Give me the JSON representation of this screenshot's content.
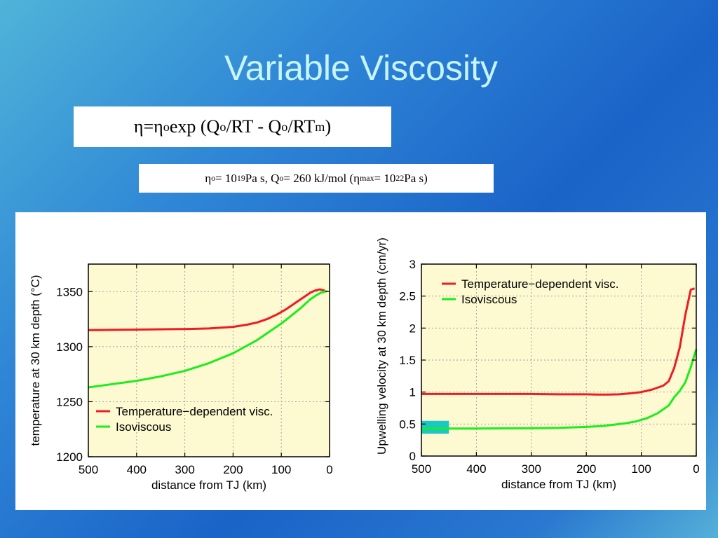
{
  "slide": {
    "title": "Variable Viscosity",
    "equation": {
      "eta": "η",
      "eq": " = ",
      "eta2": "η",
      "sub_o1": "o",
      "exp": " exp  (Q",
      "sub_o2": "o",
      "mid": "/RT - Q",
      "sub_o3": "o",
      "rt": "/RT",
      "sub_m": "m",
      "close": ")"
    },
    "params": {
      "eta": "η",
      "sub_o1": "o",
      "eq1": " = 10",
      "sup19": "19",
      "pas1": " Pa s, Q",
      "sub_o2": "o",
      "q": " = 260 kJ/mol  (η",
      "sub_max": "max",
      "eq2": " = 10",
      "sup22": "22",
      "pas2": " Pa s)"
    }
  },
  "colors": {
    "red": "#ee1c24",
    "green": "#1ced1c",
    "plot_bg": "#fdf9d0",
    "cyan": "#19c6c8"
  },
  "chart_data": [
    {
      "type": "line",
      "title": "",
      "xlabel": "distance from TJ (km)",
      "ylabel": "temperature at 30 km depth (°C)",
      "xlim": [
        500,
        0
      ],
      "ylim": [
        1200,
        1375
      ],
      "x_ticks": [
        "500",
        "400",
        "300",
        "200",
        "100",
        "0"
      ],
      "y_ticks": [
        "1200",
        "1250",
        "1300",
        "1350"
      ],
      "grid": true,
      "legend": "bottom-left",
      "series": [
        {
          "name": "Temperature−dependent visc.",
          "color": "#ee1c24",
          "x": [
            500,
            400,
            300,
            250,
            200,
            170,
            150,
            130,
            110,
            90,
            70,
            50,
            40,
            30,
            20,
            15,
            10
          ],
          "y": [
            1315,
            1315.5,
            1316,
            1316.5,
            1318,
            1320,
            1322,
            1325,
            1329,
            1334,
            1340,
            1346,
            1349,
            1351,
            1352,
            1351.5,
            1351
          ]
        },
        {
          "name": "Isoviscous",
          "color": "#1ced1c",
          "x": [
            500,
            450,
            400,
            350,
            300,
            250,
            200,
            150,
            120,
            100,
            80,
            60,
            50,
            40,
            30,
            20,
            10,
            5
          ],
          "y": [
            1263,
            1266,
            1269,
            1273,
            1278,
            1285,
            1294,
            1306,
            1315,
            1321,
            1328,
            1335,
            1339,
            1343,
            1346,
            1348.5,
            1350,
            1350.5
          ]
        }
      ]
    },
    {
      "type": "line",
      "title": "",
      "xlabel": "distance from TJ (km)",
      "ylabel": "Upwelling velocity at 30 km depth (cm/yr)",
      "xlim": [
        500,
        0
      ],
      "ylim": [
        0,
        3
      ],
      "x_ticks": [
        "500",
        "400",
        "300",
        "200",
        "100",
        "0"
      ],
      "y_ticks": [
        "0",
        "0.5",
        "1",
        "1.5",
        "2",
        "2.5",
        "3"
      ],
      "grid": true,
      "legend": "top-left",
      "series": [
        {
          "name": "Temperature−dependent visc.",
          "color": "#ee1c24",
          "x": [
            500,
            400,
            300,
            250,
            200,
            180,
            160,
            140,
            120,
            100,
            80,
            60,
            50,
            40,
            30,
            20,
            10,
            3
          ],
          "y": [
            0.97,
            0.97,
            0.97,
            0.965,
            0.965,
            0.96,
            0.96,
            0.965,
            0.98,
            1.0,
            1.04,
            1.1,
            1.17,
            1.38,
            1.7,
            2.2,
            2.6,
            2.62
          ]
        },
        {
          "name": "Isoviscous",
          "color": "#1ced1c",
          "x": [
            500,
            450,
            400,
            300,
            250,
            200,
            170,
            150,
            130,
            110,
            90,
            70,
            50,
            40,
            30,
            20,
            10,
            0
          ],
          "y": [
            0.43,
            0.43,
            0.43,
            0.435,
            0.44,
            0.455,
            0.47,
            0.49,
            0.51,
            0.54,
            0.59,
            0.67,
            0.79,
            0.92,
            1.02,
            1.15,
            1.39,
            1.67
          ]
        }
      ],
      "annotations": [
        {
          "type": "rect",
          "color": "#19c6c8",
          "x": [
            500,
            450
          ],
          "y": [
            0.35,
            0.55
          ]
        }
      ]
    }
  ]
}
